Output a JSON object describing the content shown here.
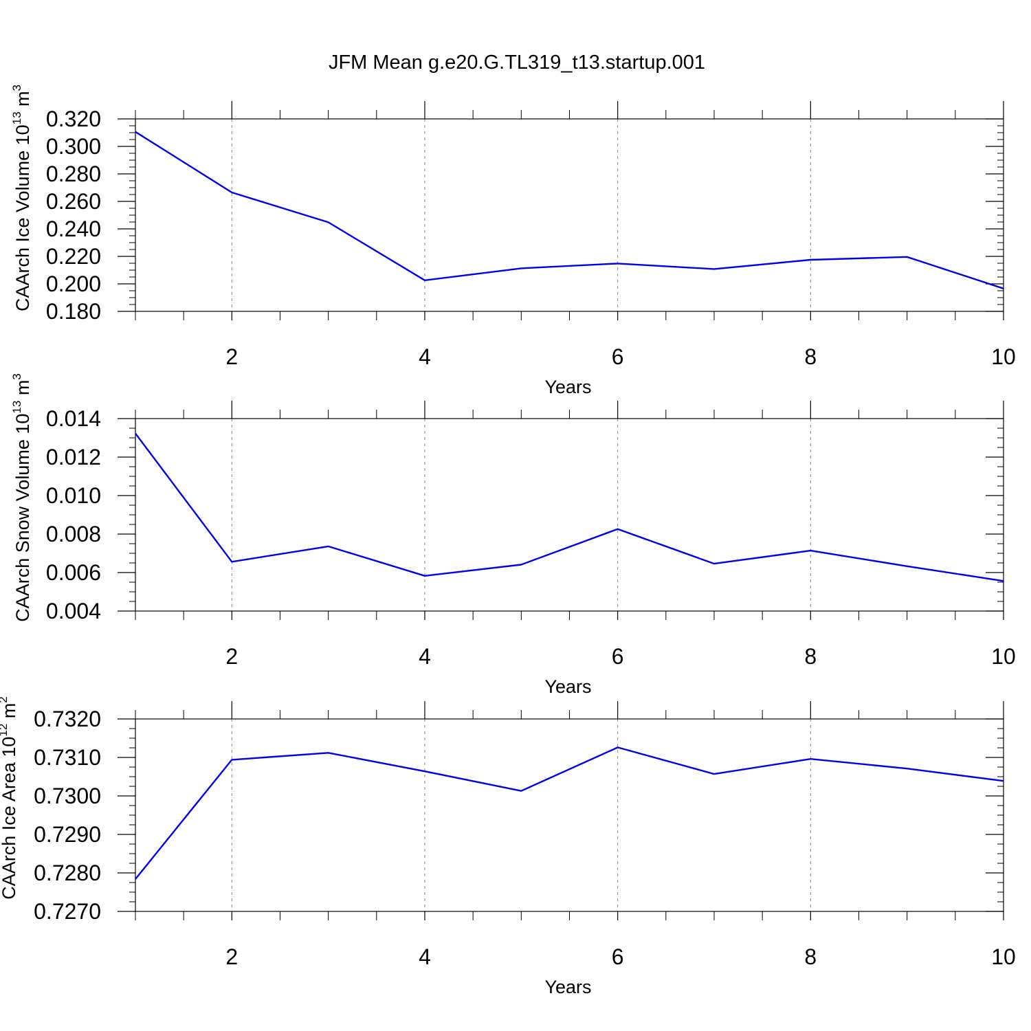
{
  "chart_data": {
    "type": "line",
    "title": "JFM Mean g.e20.G.TL319_t13.startup.001",
    "colors": {
      "line": "#0000ee",
      "axis": "#000000",
      "grid": "#888888"
    },
    "panels": [
      {
        "type": "line",
        "ylabel": {
          "main": "CAArch Ice Volume 10",
          "exp": "13",
          "unit": " m",
          "unit_exp": "3"
        },
        "xlabel": "Years",
        "xlim": [
          1,
          10
        ],
        "ylim": [
          0.18,
          0.32
        ],
        "xticks": [
          2,
          4,
          6,
          8,
          10
        ],
        "xtick_labels": [
          "2",
          "4",
          "6",
          "8",
          "10"
        ],
        "yticks": [
          0.18,
          0.2,
          0.22,
          0.24,
          0.26,
          0.28,
          0.3,
          0.32
        ],
        "ytick_labels": [
          "0.180",
          "0.200",
          "0.220",
          "0.240",
          "0.260",
          "0.280",
          "0.300",
          "0.320"
        ],
        "yminor_step": 0.005,
        "series": [
          {
            "name": "CAArch Ice Volume",
            "x": [
              1,
              2,
              3,
              4,
              5,
              6,
              7,
              8,
              9,
              10
            ],
            "values": [
              0.3106,
              0.2665,
              0.2448,
              0.2026,
              0.2113,
              0.2148,
              0.2108,
              0.2175,
              0.2196,
              0.1966
            ]
          }
        ]
      },
      {
        "type": "line",
        "ylabel": {
          "main": "CAArch Snow Volume 10",
          "exp": "13",
          "unit": " m",
          "unit_exp": "3"
        },
        "xlabel": "Years",
        "xlim": [
          1,
          10
        ],
        "ylim": [
          0.004,
          0.014
        ],
        "xticks": [
          2,
          4,
          6,
          8,
          10
        ],
        "xtick_labels": [
          "2",
          "4",
          "6",
          "8",
          "10"
        ],
        "yticks": [
          0.004,
          0.006,
          0.008,
          0.01,
          0.012,
          0.014
        ],
        "ytick_labels": [
          "0.004",
          "0.006",
          "0.008",
          "0.010",
          "0.012",
          "0.014"
        ],
        "yminor_step": 0.0005,
        "series": [
          {
            "name": "CAArch Snow Volume",
            "x": [
              1,
              2,
              3,
              4,
              5,
              6,
              7,
              8,
              9,
              10
            ],
            "values": [
              0.01323,
              0.00656,
              0.00736,
              0.00583,
              0.00641,
              0.00826,
              0.00646,
              0.00714,
              0.00633,
              0.00556
            ]
          }
        ]
      },
      {
        "type": "line",
        "ylabel": {
          "main": "CAArch Ice Area 10",
          "exp": "12",
          "unit": " m",
          "unit_exp": "2"
        },
        "xlabel": "Years",
        "xlim": [
          1,
          10
        ],
        "ylim": [
          0.727,
          0.732
        ],
        "xticks": [
          2,
          4,
          6,
          8,
          10
        ],
        "xtick_labels": [
          "2",
          "4",
          "6",
          "8",
          "10"
        ],
        "yticks": [
          0.727,
          0.728,
          0.729,
          0.73,
          0.731,
          0.732
        ],
        "ytick_labels": [
          "0.7270",
          "0.7280",
          "0.7290",
          "0.7300",
          "0.7310",
          "0.7320"
        ],
        "yminor_step": 0.00025,
        "series": [
          {
            "name": "CAArch Ice Area",
            "x": [
              1,
              2,
              3,
              4,
              5,
              6,
              7,
              8,
              9,
              10
            ],
            "values": [
              0.72784,
              0.73094,
              0.73112,
              0.73064,
              0.73013,
              0.73126,
              0.73057,
              0.73096,
              0.73071,
              0.73039
            ]
          }
        ]
      }
    ]
  }
}
